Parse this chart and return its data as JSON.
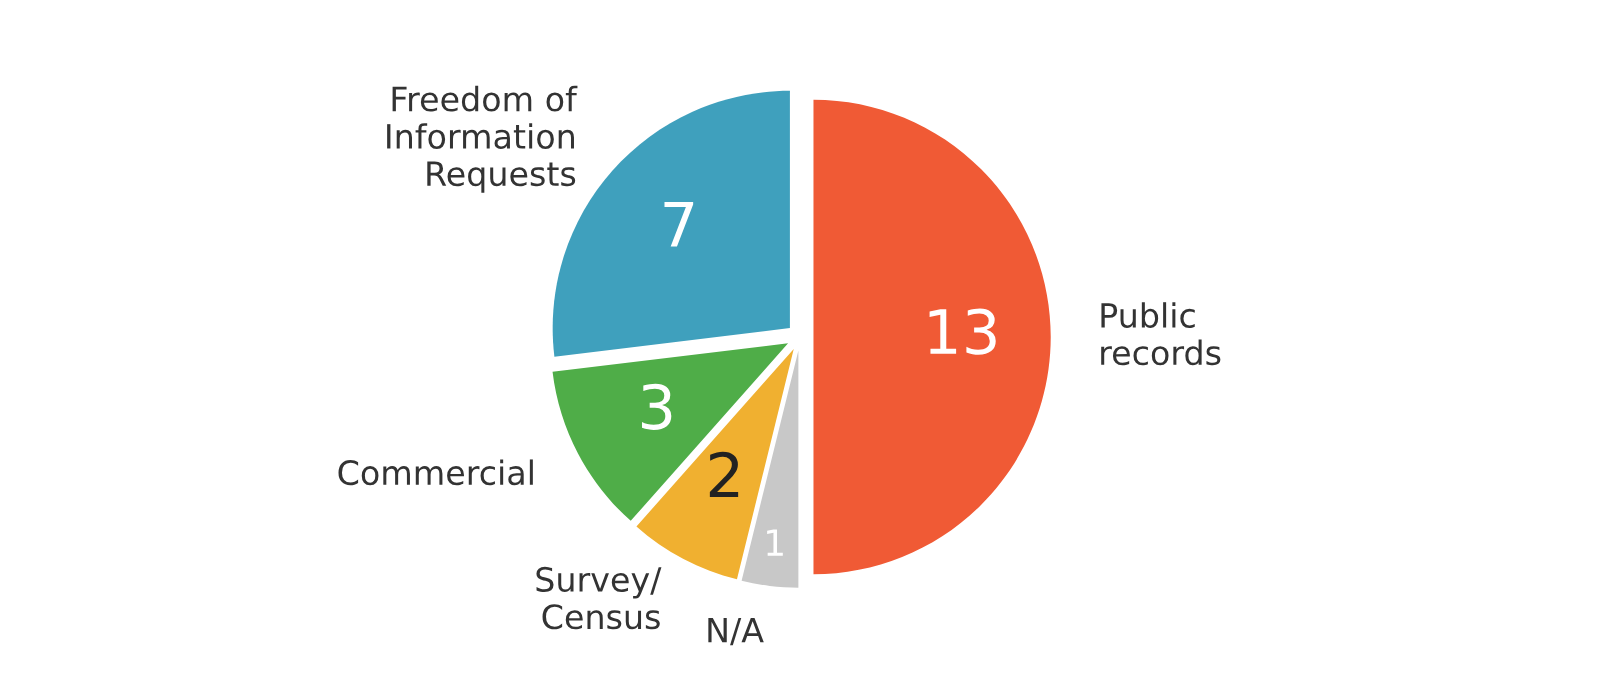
{
  "chart_data": {
    "type": "pie",
    "categories": [
      "Public\nrecords",
      "N/A",
      "Survey/\nCensus",
      "Commercial",
      "Freedom of\nInformation\nRequests"
    ],
    "values": [
      13,
      1,
      2,
      3,
      7
    ],
    "colors": [
      "#f05a35",
      "#c8c8c8",
      "#f0b030",
      "#4fad48",
      "#3fa0bd"
    ],
    "data_labels": true,
    "legend": false
  }
}
